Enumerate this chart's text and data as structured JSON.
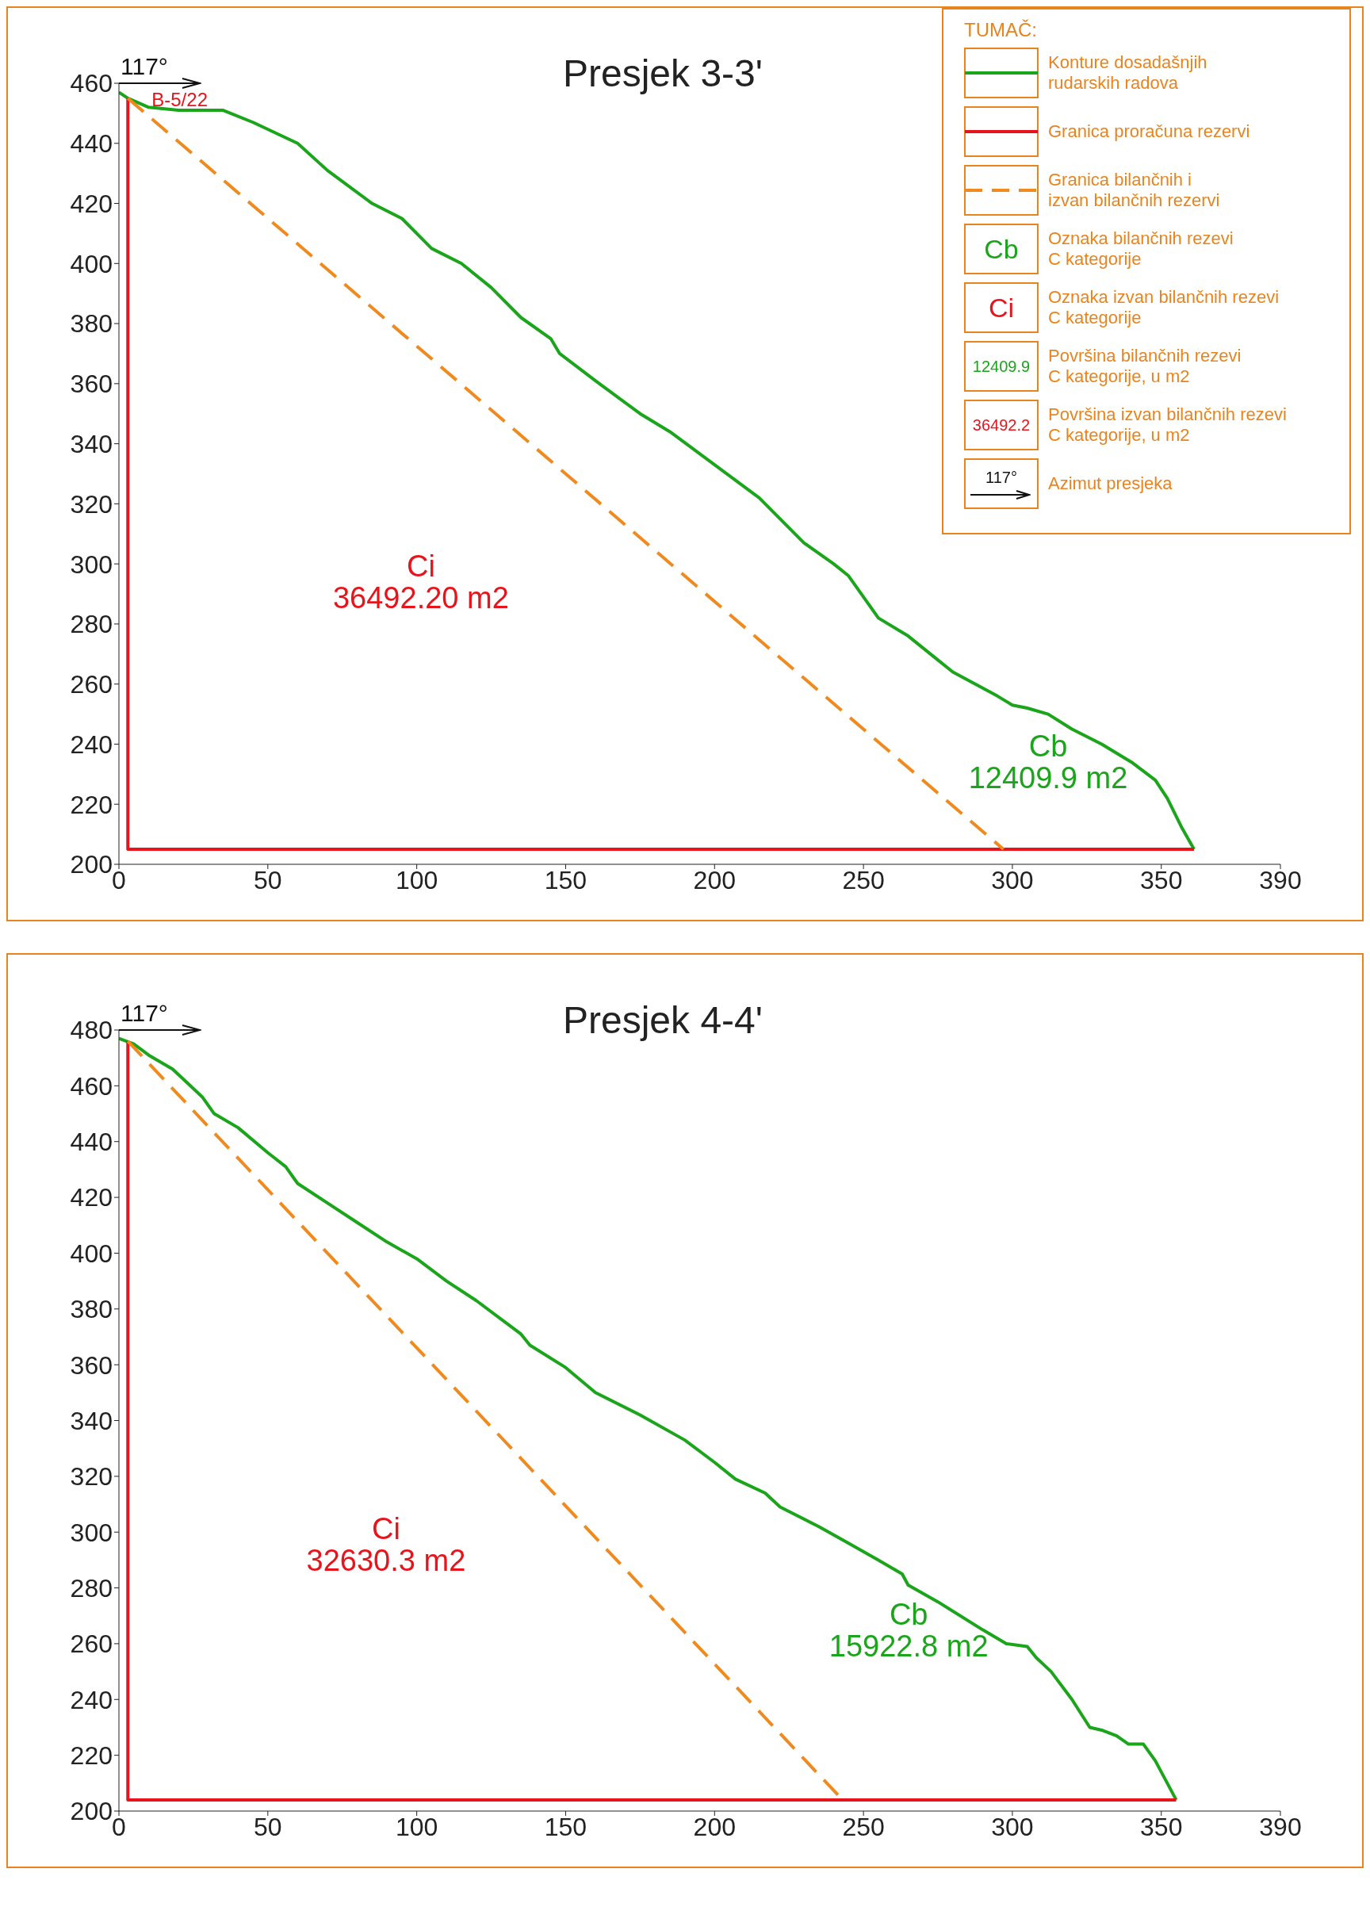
{
  "chart_data": [
    {
      "type": "line",
      "title": "Presjek 3-3'",
      "legend_title": "TUMAČ:",
      "legend": "top right",
      "marker": "none",
      "xlim": [
        0,
        390
      ],
      "xticks": [
        0,
        50,
        100,
        150,
        200,
        250,
        300,
        350,
        390
      ],
      "ylim": [
        200,
        460
      ],
      "yticks": [
        200,
        220,
        240,
        260,
        280,
        300,
        320,
        340,
        360,
        380,
        400,
        420,
        440,
        460
      ],
      "series": [
        {
          "name": "Konture dosadašnjih\nrudarskih radova",
          "color": "#1aa51a",
          "x": [
            0,
            3,
            10,
            20,
            35,
            45,
            60,
            70,
            85,
            95,
            105,
            115,
            125,
            135,
            145,
            148,
            160,
            175,
            185,
            200,
            215,
            230,
            240,
            245,
            250,
            255,
            265,
            275,
            280,
            295,
            300,
            305,
            312,
            320,
            330,
            340,
            348,
            352,
            357,
            361
          ],
          "values": [
            457,
            455,
            452,
            451,
            451,
            447,
            440,
            431,
            420,
            415,
            405,
            400,
            392,
            382,
            375,
            370,
            361,
            350,
            344,
            333,
            322,
            307,
            300,
            296,
            289,
            282,
            276,
            268,
            264,
            256,
            253,
            252,
            250,
            245,
            240,
            234,
            228,
            222,
            212,
            205
          ]
        },
        {
          "name": "Granica proračuna rezervi",
          "color": "#e8141c",
          "x": [
            3,
            3,
            361
          ],
          "values": [
            455,
            205,
            205
          ]
        },
        {
          "name": "Granica bilančnih i\nizvan bilančnih rezervi",
          "color": "#f08a1e",
          "line_style": "dashed",
          "x": [
            3,
            297
          ],
          "values": [
            455,
            205
          ]
        }
      ],
      "annotations": [
        "117°",
        {
          "text": "B-5/22",
          "x": 3,
          "y": 455
        },
        "Ci\n36492.20 m2",
        "Cb\n12409.9 m2",
        "Cb",
        "Oznaka bilančnih rezevi\nC kategorije",
        "Ci",
        "Oznaka izvan bilančnih rezevi\nC kategorije",
        "12409.9",
        "Površina bilančnih rezevi\nC kategorije, u m2",
        "36492.2",
        "Površina izvan bilančnih rezevi\nC kategorije, u m2",
        "117°",
        "Azimut presjeka"
      ]
    },
    {
      "type": "line",
      "title": "Presjek 4-4'",
      "marker": "none",
      "xlim": [
        0,
        390
      ],
      "xticks": [
        0,
        50,
        100,
        150,
        200,
        250,
        300,
        350,
        390
      ],
      "ylim": [
        200,
        480
      ],
      "yticks": [
        200,
        220,
        240,
        260,
        280,
        300,
        320,
        340,
        360,
        380,
        400,
        420,
        440,
        460,
        480
      ],
      "series": [
        {
          "color": "#1aa51a",
          "x": [
            0,
            5,
            10,
            18,
            22,
            28,
            32,
            40,
            50,
            56,
            60,
            70,
            80,
            90,
            100,
            110,
            120,
            130,
            135,
            138,
            150,
            160,
            175,
            190,
            200,
            207,
            217,
            222,
            235,
            245,
            255,
            263,
            265,
            275,
            290,
            298,
            305,
            308,
            313,
            320,
            326,
            330,
            335,
            339,
            344,
            348,
            355
          ],
          "values": [
            477,
            475,
            471,
            466,
            462,
            456,
            450,
            445,
            436,
            431,
            425,
            418,
            411,
            404,
            398,
            390,
            383,
            375,
            371,
            367,
            359,
            350,
            342,
            333,
            325,
            319,
            314,
            309,
            302,
            296,
            290,
            285,
            281,
            275,
            265,
            260,
            259,
            255,
            250,
            240,
            230,
            229,
            227,
            224,
            224,
            218,
            204
          ]
        },
        {
          "color": "#e8141c",
          "x": [
            3,
            3,
            355
          ],
          "values": [
            476,
            204,
            204
          ]
        },
        {
          "color": "#f08a1e",
          "line_style": "dashed",
          "x": [
            3,
            243
          ],
          "values": [
            476,
            204
          ]
        }
      ],
      "annotations": [
        "117°",
        "Ci\n32630.3 m2",
        "Cb\n15922.8 m2"
      ]
    }
  ]
}
